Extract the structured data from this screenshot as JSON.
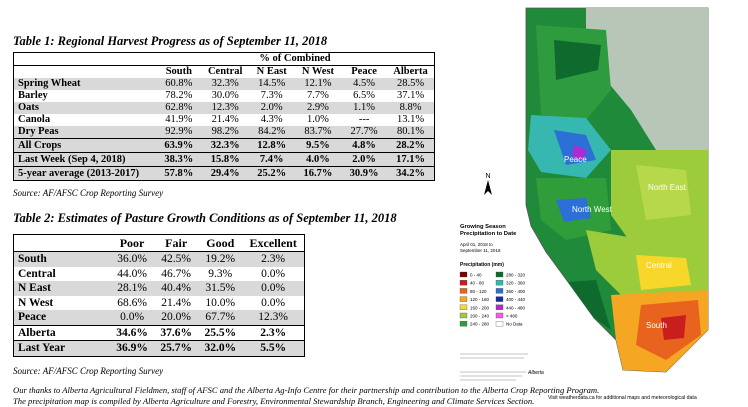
{
  "table1": {
    "title": "Table 1: Regional Harvest Progress as of September 11, 2018",
    "group_header": "% of Combined",
    "columns": [
      "South",
      "Central",
      "N East",
      "N West",
      "Peace",
      "Alberta"
    ],
    "rows": [
      {
        "label": "Spring Wheat",
        "values": [
          "60.8%",
          "32.3%",
          "14.5%",
          "12.1%",
          "4.5%",
          "28.5%"
        ]
      },
      {
        "label": "Barley",
        "values": [
          "78.2%",
          "30.0%",
          "7.3%",
          "7.7%",
          "6.5%",
          "37.1%"
        ]
      },
      {
        "label": "Oats",
        "values": [
          "62.8%",
          "12.3%",
          "2.0%",
          "2.9%",
          "1.1%",
          "8.8%"
        ]
      },
      {
        "label": "Canola",
        "values": [
          "41.9%",
          "21.4%",
          "4.3%",
          "1.0%",
          "---",
          "13.1%"
        ]
      },
      {
        "label": "Dry Peas",
        "values": [
          "92.9%",
          "98.2%",
          "84.2%",
          "83.7%",
          "27.7%",
          "80.1%"
        ]
      }
    ],
    "summary": [
      {
        "label": "All Crops",
        "values": [
          "63.9%",
          "32.3%",
          "12.8%",
          "9.5%",
          "4.8%",
          "28.2%"
        ]
      },
      {
        "label": "Last Week (Sep 4, 2018)",
        "values": [
          "38.3%",
          "15.8%",
          "7.4%",
          "4.0%",
          "2.0%",
          "17.1%"
        ]
      },
      {
        "label": "5-year average (2013-2017)",
        "values": [
          "57.8%",
          "29.4%",
          "25.2%",
          "16.7%",
          "30.9%",
          "34.2%"
        ]
      }
    ],
    "source": "Source: AF/AFSC Crop Reporting Survey"
  },
  "table2": {
    "title": "Table 2: Estimates of Pasture Growth Conditions as of September 11, 2018",
    "columns": [
      "Poor",
      "Fair",
      "Good",
      "Excellent"
    ],
    "rows": [
      {
        "label": "South",
        "values": [
          "36.0%",
          "42.5%",
          "19.2%",
          "2.3%"
        ]
      },
      {
        "label": "Central",
        "values": [
          "44.0%",
          "46.7%",
          "9.3%",
          "0.0%"
        ]
      },
      {
        "label": "N East",
        "values": [
          "28.1%",
          "40.4%",
          "31.5%",
          "0.0%"
        ]
      },
      {
        "label": "N West",
        "values": [
          "68.6%",
          "21.4%",
          "10.0%",
          "0.0%"
        ]
      },
      {
        "label": "Peace",
        "values": [
          "0.0%",
          "20.0%",
          "67.7%",
          "12.3%"
        ]
      }
    ],
    "summary": [
      {
        "label": "Alberta",
        "values": [
          "34.6%",
          "37.6%",
          "25.5%",
          "2.3%"
        ]
      },
      {
        "label": "Last Year",
        "values": [
          "36.9%",
          "25.7%",
          "32.0%",
          "5.5%"
        ]
      }
    ],
    "source": "Source: AF/AFSC Crop Reporting Survey"
  },
  "notes": {
    "line1": "Our thanks to Alberta Agricultural Fieldmen, staff of AFSC and the Alberta Ag-Info Centre for their partnership and contribution to the Alberta Crop Reporting Program.",
    "line2": "The precipitation map is compiled by Alberta Agriculture and Forestry, Environmental Stewardship Branch, Engineering and Climate Services Section."
  },
  "map": {
    "title_line1": "Growing Season",
    "title_line2": "Precipitation to Date",
    "date_line1": "April 01, 2018 to",
    "date_line2": "September 11, 2018",
    "legend_title": "Precipitation (mm)",
    "legend": [
      {
        "label": "0 - 40",
        "color": "#7a0000"
      },
      {
        "label": "40 - 80",
        "color": "#c81e1e"
      },
      {
        "label": "80 - 120",
        "color": "#e8641e"
      },
      {
        "label": "120 - 160",
        "color": "#f5a623"
      },
      {
        "label": "160 - 200",
        "color": "#f7d72a"
      },
      {
        "label": "200 - 240",
        "color": "#9ccc3c"
      },
      {
        "label": "240 - 280",
        "color": "#2f9e3a"
      },
      {
        "label": "280 - 320",
        "color": "#0f6b2d"
      },
      {
        "label": "320 - 360",
        "color": "#36b8b0"
      },
      {
        "label": "360 - 400",
        "color": "#2c6fd6"
      },
      {
        "label": "400 - 440",
        "color": "#1d2a9c"
      },
      {
        "label": "440 - 480",
        "color": "#b02ad0"
      },
      {
        "label": "> 480",
        "color": "#ff55e0"
      },
      {
        "label": "No Data",
        "color": "#ffffff"
      }
    ],
    "regions": [
      "Peace",
      "North West",
      "North East",
      "Central",
      "South"
    ],
    "footer": "Visit weatherdata.ca for additional maps and meteorological data",
    "logo_text": "Alberta"
  }
}
